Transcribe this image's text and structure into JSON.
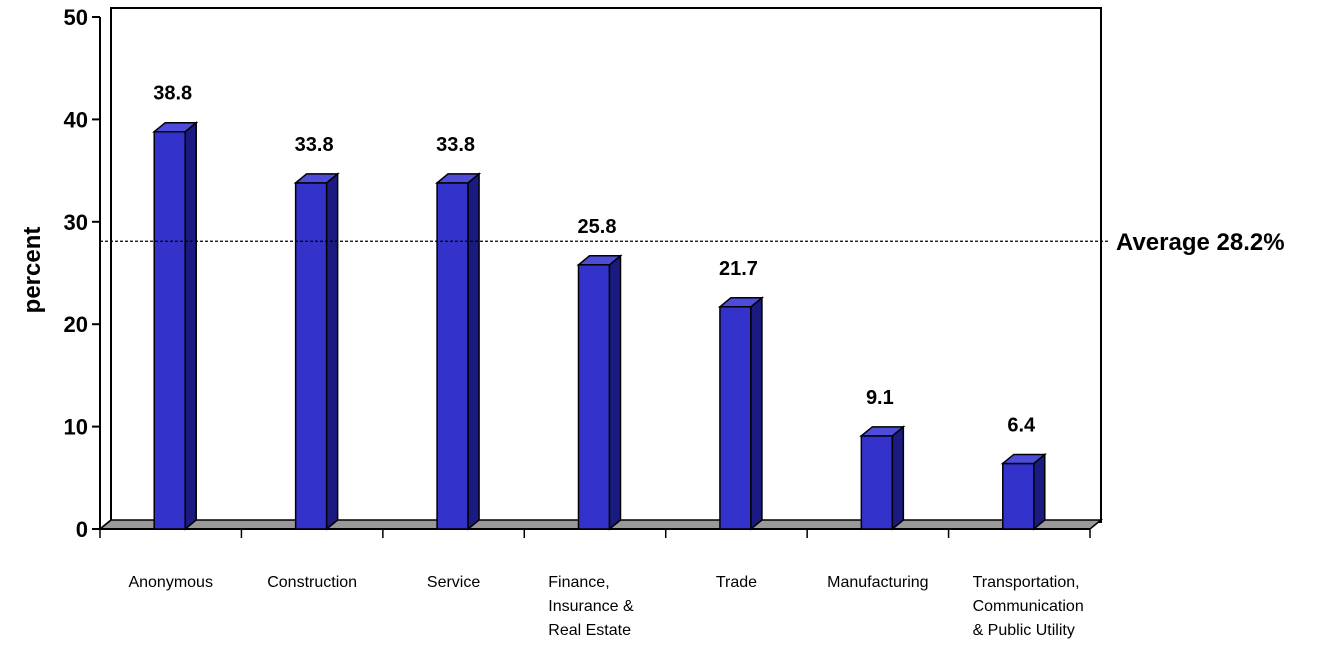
{
  "chart_data": {
    "type": "bar",
    "categories": [
      "Anonymous",
      "Construction",
      "Service",
      "Finance,\nInsurance &\nReal Estate",
      "Trade",
      "Manufacturing",
      "Transportation,\nCommunication\n& Public Utility"
    ],
    "values": [
      38.8,
      33.8,
      33.8,
      25.8,
      21.7,
      9.1,
      6.4
    ],
    "value_labels": [
      "38.8",
      "33.8",
      "33.8",
      "25.8",
      "21.7",
      "9.1",
      "6.4"
    ],
    "ylabel": "percent",
    "ylim": [
      0,
      50
    ],
    "yticks": [
      "0",
      "10",
      "20",
      "30",
      "40",
      "50"
    ],
    "average": {
      "value": 28.2,
      "label": "Average 28.2%"
    },
    "grid": false,
    "colors": {
      "bar_front": "#3333cc",
      "bar_side": "#1a1a80",
      "bar_top": "#4d4dd9",
      "floor": "#999999"
    }
  }
}
